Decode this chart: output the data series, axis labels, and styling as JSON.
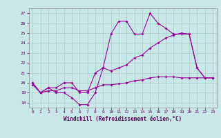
{
  "xlabel": "Windchill (Refroidissement éolien,°C)",
  "xlim": [
    -0.5,
    23.5
  ],
  "ylim": [
    17.5,
    27.5
  ],
  "yticks": [
    18,
    19,
    20,
    21,
    22,
    23,
    24,
    25,
    26,
    27
  ],
  "xticks": [
    0,
    1,
    2,
    3,
    4,
    5,
    6,
    7,
    8,
    9,
    10,
    11,
    12,
    13,
    14,
    15,
    16,
    17,
    18,
    19,
    20,
    21,
    22,
    23
  ],
  "background_color": "#c8e8e8",
  "line_color": "#990099",
  "grid_color": "#b0c8c8",
  "line1_x": [
    0,
    1,
    2,
    3,
    4,
    5,
    6,
    7,
    8,
    9,
    10,
    11,
    12,
    13,
    14,
    15,
    16,
    17,
    18,
    19,
    20,
    21,
    22,
    23
  ],
  "line1_y": [
    20.0,
    19.0,
    19.5,
    19.0,
    19.0,
    18.5,
    17.8,
    17.8,
    19.0,
    21.5,
    24.9,
    26.2,
    26.2,
    24.9,
    24.9,
    27.0,
    26.0,
    25.5,
    24.9,
    24.9,
    24.9,
    21.5,
    20.5,
    20.5
  ],
  "line2_x": [
    0,
    1,
    2,
    3,
    4,
    5,
    6,
    7,
    8,
    9,
    10,
    11,
    12,
    13,
    14,
    15,
    16,
    17,
    18,
    19,
    20,
    21,
    22,
    23
  ],
  "line2_y": [
    20.0,
    19.0,
    19.5,
    19.5,
    20.0,
    20.0,
    19.0,
    19.0,
    21.0,
    21.5,
    21.2,
    21.5,
    21.8,
    22.5,
    22.8,
    23.5,
    24.0,
    24.5,
    24.8,
    25.0,
    24.9,
    21.5,
    20.5,
    20.5
  ],
  "line3_x": [
    0,
    1,
    2,
    3,
    4,
    5,
    6,
    7,
    8,
    9,
    10,
    11,
    12,
    13,
    14,
    15,
    16,
    17,
    18,
    19,
    20,
    21,
    22,
    23
  ],
  "line3_y": [
    19.8,
    19.0,
    19.2,
    19.2,
    19.5,
    19.5,
    19.2,
    19.2,
    19.5,
    19.8,
    19.8,
    19.9,
    20.0,
    20.2,
    20.3,
    20.5,
    20.6,
    20.6,
    20.6,
    20.5,
    20.5,
    20.5,
    20.5,
    20.5
  ]
}
